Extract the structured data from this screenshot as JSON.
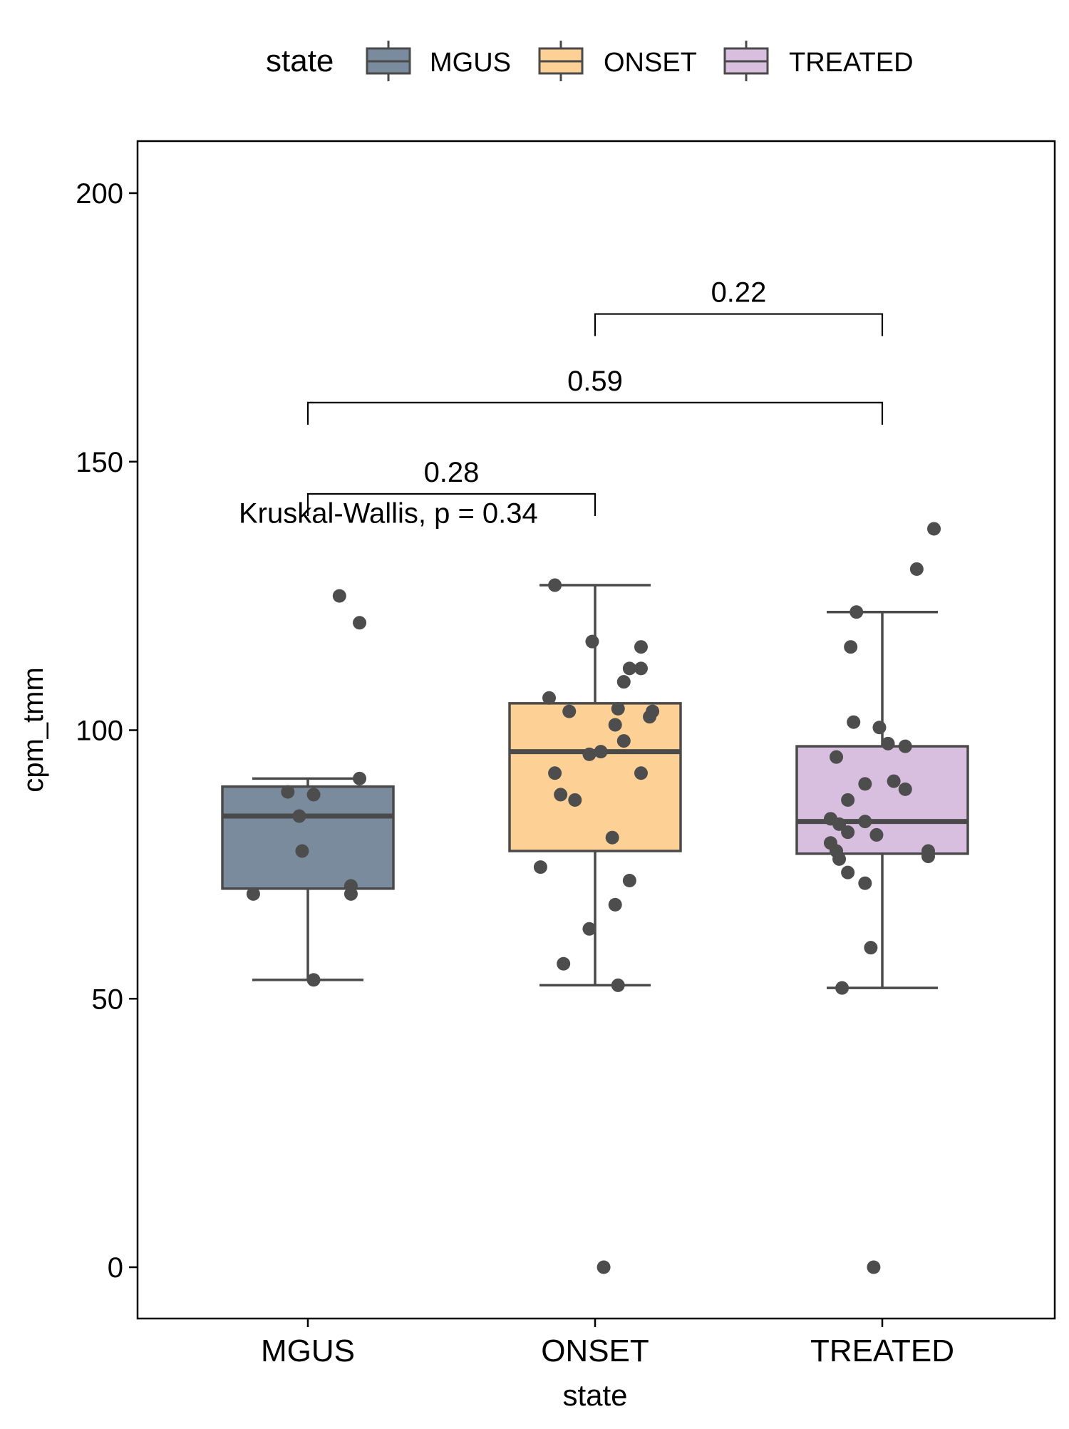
{
  "chart_data": {
    "type": "box",
    "title": "",
    "xlabel": "state",
    "ylabel": "cpm_tmm",
    "ylim": [
      -10,
      210
    ],
    "yticks": [
      0,
      50,
      100,
      150,
      200
    ],
    "grid": false,
    "legend": {
      "title": "state",
      "position": "top"
    },
    "categories": [
      "MGUS",
      "ONSET",
      "TREATED"
    ],
    "colors": {
      "MGUS": "#7b8b9e",
      "ONSET": "#fdd195",
      "TREATED": "#d8bfdf",
      "outline": "#4a4a4a",
      "points": "#4d4d4d"
    },
    "series": [
      {
        "name": "MGUS",
        "box": {
          "min": 53.5,
          "q1": 70.5,
          "median": 84,
          "q3": 89.5,
          "max": 91
        },
        "points": [
          {
            "x": 0.81,
            "y": 69.5
          },
          {
            "x": 0.93,
            "y": 88.5
          },
          {
            "x": 0.97,
            "y": 84
          },
          {
            "x": 0.98,
            "y": 77.5
          },
          {
            "x": 1.02,
            "y": 53.5
          },
          {
            "x": 1.02,
            "y": 88
          },
          {
            "x": 1.11,
            "y": 125
          },
          {
            "x": 1.15,
            "y": 71
          },
          {
            "x": 1.15,
            "y": 69.5
          },
          {
            "x": 1.18,
            "y": 91
          },
          {
            "x": 1.18,
            "y": 120
          }
        ]
      },
      {
        "name": "ONSET",
        "box": {
          "min": 52.5,
          "q1": 77.5,
          "median": 96,
          "q3": 105,
          "max": 127
        },
        "points": [
          {
            "x": 1.81,
            "y": 74.5
          },
          {
            "x": 1.84,
            "y": 106
          },
          {
            "x": 1.86,
            "y": 127
          },
          {
            "x": 1.86,
            "y": 92
          },
          {
            "x": 1.88,
            "y": 88
          },
          {
            "x": 1.89,
            "y": 56.5
          },
          {
            "x": 1.91,
            "y": 103.5
          },
          {
            "x": 1.93,
            "y": 87
          },
          {
            "x": 1.98,
            "y": 63
          },
          {
            "x": 1.98,
            "y": 95.5
          },
          {
            "x": 1.99,
            "y": 116.5
          },
          {
            "x": 2.02,
            "y": 96
          },
          {
            "x": 2.03,
            "y": 0
          },
          {
            "x": 2.06,
            "y": 80
          },
          {
            "x": 2.07,
            "y": 67.5
          },
          {
            "x": 2.07,
            "y": 101
          },
          {
            "x": 2.08,
            "y": 52.5
          },
          {
            "x": 2.08,
            "y": 104
          },
          {
            "x": 2.1,
            "y": 98
          },
          {
            "x": 2.1,
            "y": 109
          },
          {
            "x": 2.12,
            "y": 111.5
          },
          {
            "x": 2.12,
            "y": 72
          },
          {
            "x": 2.16,
            "y": 111.5
          },
          {
            "x": 2.16,
            "y": 115.5
          },
          {
            "x": 2.16,
            "y": 92
          },
          {
            "x": 2.19,
            "y": 102.5
          },
          {
            "x": 2.2,
            "y": 103.5
          }
        ]
      },
      {
        "name": "TREATED",
        "box": {
          "min": 52,
          "q1": 77,
          "median": 83,
          "q3": 97,
          "max": 122
        },
        "points": [
          {
            "x": 2.82,
            "y": 79
          },
          {
            "x": 2.82,
            "y": 83.5
          },
          {
            "x": 2.84,
            "y": 95
          },
          {
            "x": 2.84,
            "y": 77.5
          },
          {
            "x": 2.85,
            "y": 82.5
          },
          {
            "x": 2.85,
            "y": 76
          },
          {
            "x": 2.86,
            "y": 52
          },
          {
            "x": 2.88,
            "y": 73.5
          },
          {
            "x": 2.88,
            "y": 87
          },
          {
            "x": 2.88,
            "y": 81
          },
          {
            "x": 2.89,
            "y": 115.5
          },
          {
            "x": 2.9,
            "y": 101.5
          },
          {
            "x": 2.91,
            "y": 122
          },
          {
            "x": 2.94,
            "y": 83
          },
          {
            "x": 2.94,
            "y": 90
          },
          {
            "x": 2.94,
            "y": 71.5
          },
          {
            "x": 2.96,
            "y": 59.5
          },
          {
            "x": 2.97,
            "y": 0
          },
          {
            "x": 2.98,
            "y": 80.5
          },
          {
            "x": 2.99,
            "y": 100.5
          },
          {
            "x": 3.02,
            "y": 97.5
          },
          {
            "x": 3.04,
            "y": 90.5
          },
          {
            "x": 3.08,
            "y": 97
          },
          {
            "x": 3.08,
            "y": 89
          },
          {
            "x": 3.16,
            "y": 77.5
          },
          {
            "x": 3.16,
            "y": 76.5
          },
          {
            "x": 3.12,
            "y": 130
          },
          {
            "x": 3.18,
            "y": 137.5
          }
        ]
      }
    ],
    "comparisons": [
      {
        "from": "MGUS",
        "to": "ONSET",
        "label": "0.28",
        "y": 144
      },
      {
        "from": "MGUS",
        "to": "TREATED",
        "label": "0.59",
        "y": 161
      },
      {
        "from": "ONSET",
        "to": "TREATED",
        "label": "0.22",
        "y": 177.5
      }
    ],
    "annotation": {
      "text": "Kruskal-Wallis, p = 0.34",
      "x": 1.36,
      "y": 140.5
    }
  }
}
